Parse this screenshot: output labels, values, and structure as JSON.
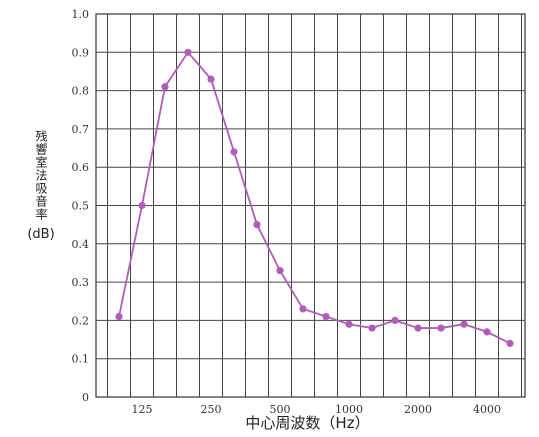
{
  "chart_data": {
    "type": "line",
    "xlabel": "中心周波数（Hz）",
    "ylabel": "残響室法吸音率",
    "ylabel_unit": "(dB)",
    "ylim": [
      0,
      1.0
    ],
    "y_ticks": [
      "0",
      "0.1",
      "0.2",
      "0.3",
      "0.4",
      "0.5",
      "0.6",
      "0.7",
      "0.8",
      "0.9",
      "1.0"
    ],
    "x_tick_labels": [
      {
        "index": 1,
        "label": "125"
      },
      {
        "index": 4,
        "label": "250"
      },
      {
        "index": 7,
        "label": "500"
      },
      {
        "index": 10,
        "label": "1000"
      },
      {
        "index": 13,
        "label": "2000"
      },
      {
        "index": 16,
        "label": "4000"
      }
    ],
    "grid": true,
    "line_color": "#b05cb8",
    "series": [
      {
        "x": [
          100,
          125,
          160,
          200,
          250,
          315,
          400,
          500,
          630,
          800,
          1000,
          1250,
          1600,
          2000,
          2500,
          3150,
          4000,
          5000
        ],
        "values": [
          0.21,
          0.5,
          0.81,
          0.9,
          0.83,
          0.64,
          0.45,
          0.33,
          0.23,
          0.21,
          0.19,
          0.18,
          0.2,
          0.18,
          0.18,
          0.19,
          0.17,
          0.14
        ]
      }
    ]
  }
}
